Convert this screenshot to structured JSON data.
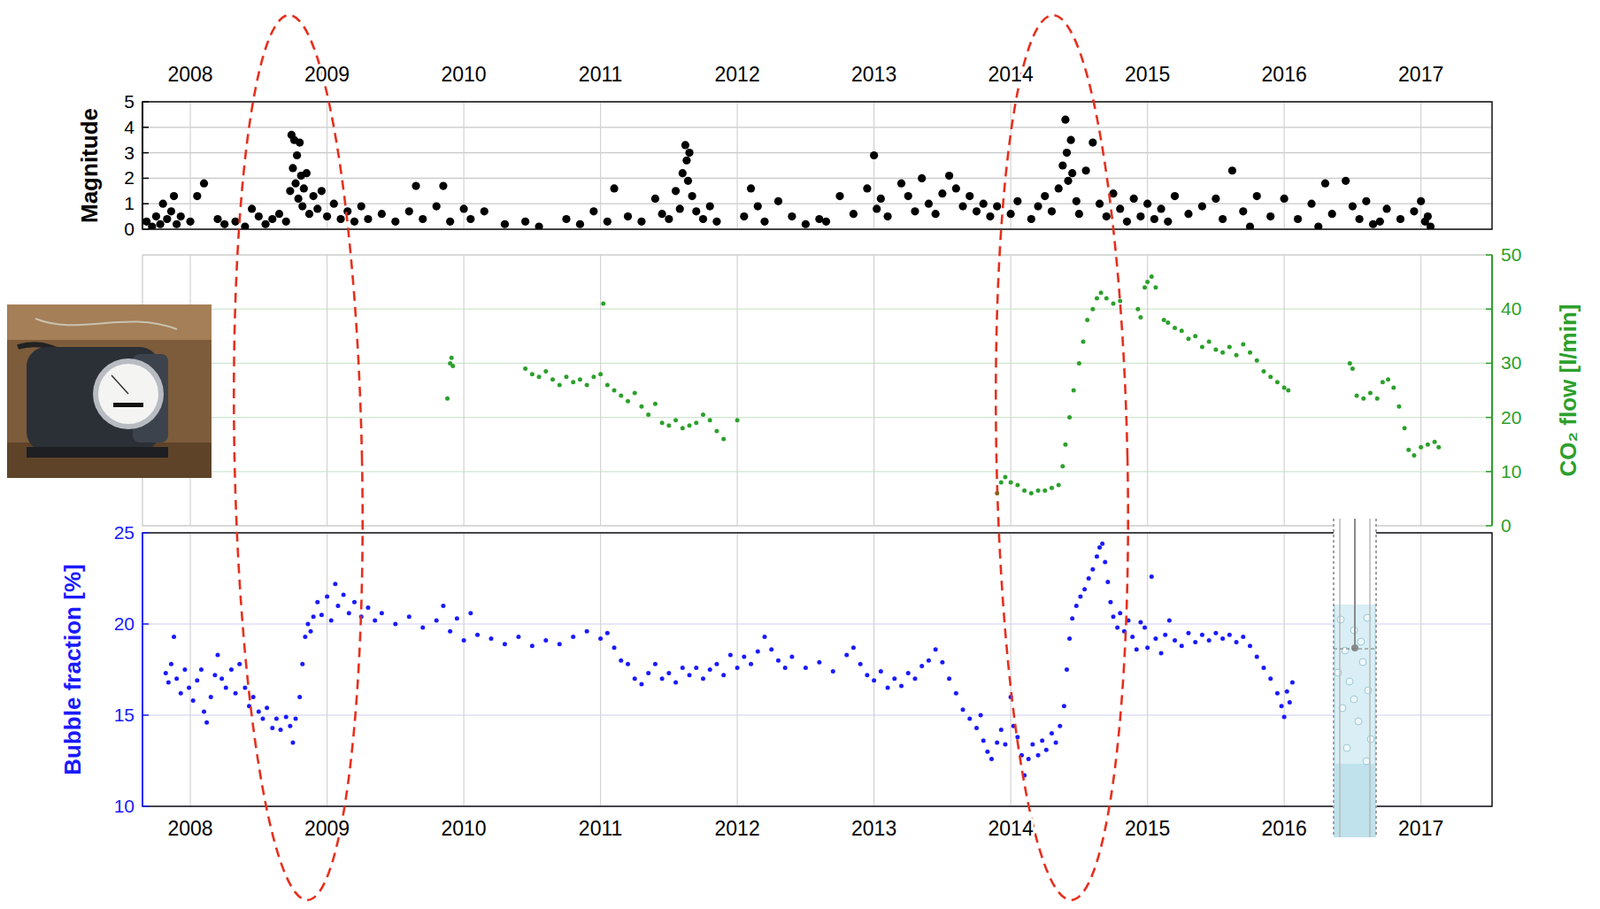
{
  "chart_data": [
    {
      "type": "scatter",
      "ylabel": "Magnitude",
      "color": "#000000",
      "marker": "circle",
      "grid": true,
      "xlim": [
        2007.65,
        2017.52
      ],
      "xticks": [
        2008,
        2009,
        2010,
        2011,
        2012,
        2013,
        2014,
        2015,
        2016,
        2017
      ],
      "ylim": [
        0,
        5
      ],
      "yticks": [
        0,
        1,
        2,
        3,
        4,
        5
      ],
      "x": [
        2007.68,
        2007.72,
        2007.75,
        2007.78,
        2007.8,
        2007.83,
        2007.86,
        2007.88,
        2007.9,
        2007.93,
        2008.0,
        2008.05,
        2008.1,
        2008.2,
        2008.25,
        2008.33,
        2008.4,
        2008.45,
        2008.5,
        2008.55,
        2008.6,
        2008.65,
        2008.7,
        2008.73,
        2008.74,
        2008.75,
        2008.76,
        2008.77,
        2008.78,
        2008.79,
        2008.8,
        2008.81,
        2008.82,
        2008.83,
        2008.85,
        2008.87,
        2008.9,
        2008.93,
        2008.96,
        2009.0,
        2009.05,
        2009.1,
        2009.15,
        2009.2,
        2009.25,
        2009.3,
        2009.4,
        2009.5,
        2009.6,
        2009.65,
        2009.7,
        2009.8,
        2009.85,
        2009.9,
        2010.0,
        2010.05,
        2010.15,
        2010.3,
        2010.45,
        2010.55,
        2010.75,
        2010.85,
        2010.95,
        2011.05,
        2011.1,
        2011.2,
        2011.3,
        2011.4,
        2011.45,
        2011.5,
        2011.55,
        2011.58,
        2011.6,
        2011.62,
        2011.63,
        2011.64,
        2011.65,
        2011.67,
        2011.7,
        2011.75,
        2011.8,
        2011.85,
        2012.05,
        2012.1,
        2012.15,
        2012.2,
        2012.3,
        2012.4,
        2012.5,
        2012.6,
        2012.65,
        2012.75,
        2012.85,
        2012.95,
        2013.0,
        2013.02,
        2013.05,
        2013.1,
        2013.2,
        2013.25,
        2013.3,
        2013.35,
        2013.4,
        2013.45,
        2013.5,
        2013.55,
        2013.6,
        2013.65,
        2013.7,
        2013.75,
        2013.8,
        2013.85,
        2013.9,
        2014.0,
        2014.05,
        2014.15,
        2014.2,
        2014.25,
        2014.3,
        2014.35,
        2014.38,
        2014.4,
        2014.41,
        2014.42,
        2014.44,
        2014.45,
        2014.48,
        2014.5,
        2014.55,
        2014.6,
        2014.65,
        2014.7,
        2014.75,
        2014.8,
        2014.85,
        2014.9,
        2014.95,
        2015.0,
        2015.05,
        2015.1,
        2015.15,
        2015.2,
        2015.3,
        2015.4,
        2015.5,
        2015.55,
        2015.62,
        2015.7,
        2015.8,
        2015.9,
        2016.0,
        2016.1,
        2016.2,
        2016.3,
        2016.35,
        2016.45,
        2016.5,
        2016.55,
        2016.6,
        2016.7,
        2016.75,
        2016.85,
        2016.95,
        2017.0,
        2017.03,
        2017.05,
        2017.07,
        2016.65,
        2016.25,
        2015.75
      ],
      "values": [
        0.3,
        0.1,
        0.5,
        0.2,
        1.0,
        0.4,
        0.7,
        1.3,
        0.2,
        0.5,
        0.3,
        1.3,
        1.8,
        0.4,
        0.2,
        0.3,
        0.1,
        0.8,
        0.5,
        0.2,
        0.4,
        0.6,
        0.3,
        1.5,
        3.7,
        2.4,
        3.5,
        1.8,
        2.9,
        1.2,
        3.4,
        2.1,
        0.9,
        1.6,
        2.2,
        0.6,
        1.3,
        0.8,
        1.5,
        0.5,
        1.0,
        0.4,
        0.7,
        0.3,
        0.9,
        0.4,
        0.6,
        0.3,
        0.7,
        1.7,
        0.4,
        0.9,
        1.7,
        0.3,
        0.8,
        0.4,
        0.7,
        0.2,
        0.3,
        0.1,
        0.4,
        0.2,
        0.7,
        0.3,
        1.6,
        0.5,
        0.3,
        1.2,
        0.6,
        0.4,
        1.5,
        0.8,
        2.2,
        3.3,
        2.7,
        1.9,
        3.0,
        1.3,
        0.7,
        0.4,
        0.9,
        0.3,
        0.5,
        1.6,
        0.9,
        0.3,
        1.1,
        0.5,
        0.2,
        0.4,
        0.3,
        1.3,
        0.6,
        1.6,
        2.9,
        0.8,
        1.2,
        0.5,
        1.8,
        1.3,
        0.7,
        2.0,
        1.0,
        0.6,
        1.4,
        2.1,
        1.6,
        0.9,
        1.3,
        0.7,
        1.0,
        0.5,
        0.9,
        0.6,
        1.1,
        0.4,
        0.9,
        1.3,
        0.7,
        1.6,
        2.5,
        4.3,
        3.0,
        1.9,
        3.5,
        2.2,
        1.1,
        0.6,
        2.3,
        3.4,
        1.0,
        0.5,
        1.4,
        0.8,
        0.3,
        1.2,
        0.5,
        1.0,
        0.4,
        0.8,
        0.3,
        1.3,
        0.6,
        0.9,
        1.2,
        0.4,
        2.3,
        0.7,
        1.3,
        0.5,
        1.2,
        0.4,
        1.0,
        1.8,
        0.6,
        1.9,
        0.9,
        0.4,
        1.1,
        0.3,
        0.8,
        0.4,
        0.7,
        1.1,
        0.3,
        0.5,
        0.1,
        0.2,
        0.1,
        0.1
      ]
    },
    {
      "type": "scatter",
      "ylabel": "CO₂ flow [l/min]",
      "color": "#2ca02c",
      "marker": "point",
      "grid": true,
      "tick_labels": "y",
      "xlim": [
        2007.65,
        2017.52
      ],
      "xticks": [
        2008,
        2009,
        2010,
        2011,
        2012,
        2013,
        2014,
        2015,
        2016,
        2017
      ],
      "ylim": [
        0,
        50
      ],
      "yticks": [
        0,
        10,
        20,
        30,
        40,
        50
      ],
      "x": [
        2009.88,
        2009.9,
        2009.91,
        2009.92,
        2010.45,
        2010.5,
        2010.55,
        2010.6,
        2010.65,
        2010.7,
        2010.75,
        2010.8,
        2010.85,
        2010.9,
        2010.95,
        2011.0,
        2011.02,
        2011.05,
        2011.1,
        2011.15,
        2011.2,
        2011.25,
        2011.3,
        2011.35,
        2011.4,
        2011.45,
        2011.5,
        2011.55,
        2011.6,
        2011.65,
        2011.7,
        2011.75,
        2011.8,
        2011.85,
        2011.9,
        2012.0,
        2013.9,
        2013.93,
        2013.96,
        2014.0,
        2014.05,
        2014.1,
        2014.15,
        2014.2,
        2014.25,
        2014.3,
        2014.35,
        2014.38,
        2014.4,
        2014.43,
        2014.46,
        2014.5,
        2014.53,
        2014.56,
        2014.6,
        2014.63,
        2014.66,
        2014.7,
        2014.75,
        2014.8,
        2014.93,
        2014.95,
        2014.98,
        2015.0,
        2015.03,
        2015.06,
        2015.12,
        2015.15,
        2015.2,
        2015.25,
        2015.3,
        2015.35,
        2015.4,
        2015.45,
        2015.5,
        2015.55,
        2015.6,
        2015.65,
        2015.7,
        2015.75,
        2015.8,
        2015.85,
        2015.9,
        2015.95,
        2016.0,
        2016.03,
        2016.48,
        2016.5,
        2016.53,
        2016.58,
        2016.63,
        2016.68,
        2016.72,
        2016.76,
        2016.8,
        2016.84,
        2016.88,
        2016.91,
        2016.95,
        2017.0,
        2017.05,
        2017.1,
        2017.13
      ],
      "values": [
        23.5,
        30,
        31,
        29.5,
        29,
        28,
        27.5,
        28.5,
        27,
        26,
        27.5,
        26.5,
        27,
        26,
        27.5,
        28,
        41,
        26,
        25,
        24,
        23,
        24.5,
        22,
        20.5,
        22.5,
        19,
        18.5,
        19.5,
        18,
        18.5,
        19,
        20.5,
        19.5,
        17.5,
        16,
        19.5,
        6,
        8,
        9,
        8,
        7.5,
        6.5,
        6,
        6.5,
        6.5,
        7,
        7.5,
        11,
        15,
        20,
        25,
        30,
        34,
        38,
        40,
        42,
        43,
        42,
        41,
        41.5,
        40,
        38.5,
        44,
        45,
        46,
        44,
        38,
        37.5,
        36.5,
        36,
        34.5,
        35,
        33,
        34,
        32.5,
        32,
        33,
        31.5,
        33.5,
        32,
        30.5,
        28.5,
        27.5,
        26.5,
        25.5,
        25,
        30,
        29,
        24,
        23.5,
        24.5,
        23.5,
        26.5,
        27,
        25.5,
        22,
        18,
        14,
        13,
        14.5,
        15,
        15.5,
        14.5
      ]
    },
    {
      "type": "scatter",
      "ylabel": "Bubble fraction [%]",
      "color": "#1a1aff",
      "marker": "point",
      "grid": true,
      "xlim": [
        2007.65,
        2017.52
      ],
      "xticks": [
        2008,
        2009,
        2010,
        2011,
        2012,
        2013,
        2014,
        2015,
        2016,
        2017
      ],
      "ylim": [
        10,
        25
      ],
      "yticks": [
        10,
        15,
        20,
        25
      ],
      "x": [
        2007.82,
        2007.84,
        2007.86,
        2007.88,
        2007.9,
        2007.93,
        2007.96,
        2007.99,
        2008.02,
        2008.05,
        2008.08,
        2008.1,
        2008.12,
        2008.15,
        2008.18,
        2008.2,
        2008.23,
        2008.26,
        2008.3,
        2008.33,
        2008.36,
        2008.4,
        2008.43,
        2008.46,
        2008.5,
        2008.53,
        2008.56,
        2008.6,
        2008.63,
        2008.66,
        2008.7,
        2008.73,
        2008.75,
        2008.77,
        2008.8,
        2008.82,
        2008.84,
        2008.86,
        2008.88,
        2008.9,
        2008.93,
        2008.96,
        2009.0,
        2009.03,
        2009.06,
        2009.08,
        2009.12,
        2009.16,
        2009.2,
        2009.25,
        2009.3,
        2009.35,
        2009.4,
        2009.5,
        2009.6,
        2009.7,
        2009.8,
        2009.85,
        2009.9,
        2009.95,
        2010.0,
        2010.05,
        2010.1,
        2010.2,
        2010.3,
        2010.4,
        2010.5,
        2010.6,
        2010.7,
        2010.8,
        2010.9,
        2011.0,
        2011.05,
        2011.1,
        2011.15,
        2011.2,
        2011.25,
        2011.3,
        2011.35,
        2011.4,
        2011.45,
        2011.5,
        2011.55,
        2011.6,
        2011.65,
        2011.7,
        2011.75,
        2011.8,
        2011.85,
        2011.9,
        2011.95,
        2012.0,
        2012.05,
        2012.1,
        2012.15,
        2012.2,
        2012.25,
        2012.3,
        2012.35,
        2012.4,
        2012.5,
        2012.6,
        2012.7,
        2012.8,
        2012.85,
        2012.9,
        2012.95,
        2013.0,
        2013.05,
        2013.1,
        2013.15,
        2013.2,
        2013.25,
        2013.3,
        2013.35,
        2013.4,
        2013.45,
        2013.5,
        2013.55,
        2013.6,
        2013.65,
        2013.7,
        2013.75,
        2013.78,
        2013.8,
        2013.83,
        2013.86,
        2013.9,
        2013.93,
        2013.96,
        2014.0,
        2014.02,
        2014.05,
        2014.08,
        2014.1,
        2014.13,
        2014.16,
        2014.2,
        2014.23,
        2014.26,
        2014.3,
        2014.33,
        2014.36,
        2014.39,
        2014.41,
        2014.43,
        2014.45,
        2014.48,
        2014.51,
        2014.54,
        2014.57,
        2014.6,
        2014.63,
        2014.65,
        2014.67,
        2014.69,
        2014.71,
        2014.73,
        2014.75,
        2014.78,
        2014.8,
        2014.83,
        2014.86,
        2014.89,
        2014.92,
        2014.95,
        2014.98,
        2015.0,
        2015.03,
        2015.06,
        2015.1,
        2015.13,
        2015.16,
        2015.2,
        2015.25,
        2015.3,
        2015.35,
        2015.4,
        2015.45,
        2015.5,
        2015.55,
        2015.6,
        2015.65,
        2015.7,
        2015.75,
        2015.8,
        2015.85,
        2015.9,
        2015.95,
        2015.98,
        2016.0,
        2016.02,
        2016.04,
        2016.06
      ],
      "values": [
        17.3,
        16.8,
        17.8,
        19.3,
        17,
        16.2,
        17.5,
        16.5,
        15.8,
        16.9,
        17.5,
        15.2,
        14.6,
        16,
        17.2,
        18.3,
        17,
        16.5,
        17.5,
        16.2,
        17.8,
        16.5,
        15.5,
        16,
        15.2,
        14.8,
        15.4,
        14.3,
        14.8,
        14.2,
        14.9,
        14.4,
        13.5,
        14.8,
        16,
        17.8,
        19.3,
        20,
        19.6,
        20.4,
        21.2,
        20.5,
        21.5,
        20.2,
        22.2,
        21,
        21.6,
        20.6,
        21.2,
        20.4,
        20.9,
        20.2,
        20.6,
        20,
        20.4,
        19.8,
        20.2,
        21,
        19.6,
        20.3,
        19.1,
        20.6,
        19.4,
        19.2,
        18.9,
        19.3,
        18.8,
        19.1,
        18.9,
        19.3,
        19.6,
        19.2,
        19.5,
        18.7,
        18,
        17.8,
        17,
        16.7,
        17.3,
        17.8,
        17,
        17.3,
        16.8,
        17.6,
        17.2,
        17.6,
        17,
        17.5,
        17.8,
        17.2,
        18.3,
        17.6,
        18.2,
        17.8,
        18.5,
        19.3,
        18.6,
        18,
        17.6,
        18.2,
        17.6,
        17.9,
        17.4,
        18.3,
        18.7,
        17.8,
        17.2,
        16.9,
        17.4,
        16.5,
        17,
        16.6,
        17.3,
        17,
        17.7,
        18,
        18.6,
        17.9,
        17,
        16.2,
        15.3,
        14.8,
        14.3,
        15,
        13.6,
        13,
        12.6,
        13.5,
        14.2,
        13.4,
        16,
        14.4,
        13.8,
        12.8,
        11.7,
        12.6,
        13.4,
        12.8,
        13.6,
        13.1,
        14,
        13.5,
        14.4,
        15.5,
        17.5,
        19.2,
        20.3,
        21,
        21.5,
        21.9,
        22.5,
        23,
        23.7,
        24.2,
        24.4,
        23.4,
        22.3,
        21.2,
        20.4,
        19.8,
        20.6,
        19.6,
        20.2,
        19.3,
        18.6,
        20.1,
        19.8,
        18.7,
        22.6,
        19.2,
        18.4,
        19.4,
        20.2,
        19.1,
        18.8,
        19.5,
        19,
        19.4,
        19.1,
        19.5,
        19.2,
        19.4,
        19,
        19.3,
        18.8,
        18.2,
        17.6,
        17,
        16.2,
        15.5,
        14.9,
        16.3,
        15.7,
        16.8
      ]
    }
  ]
}
